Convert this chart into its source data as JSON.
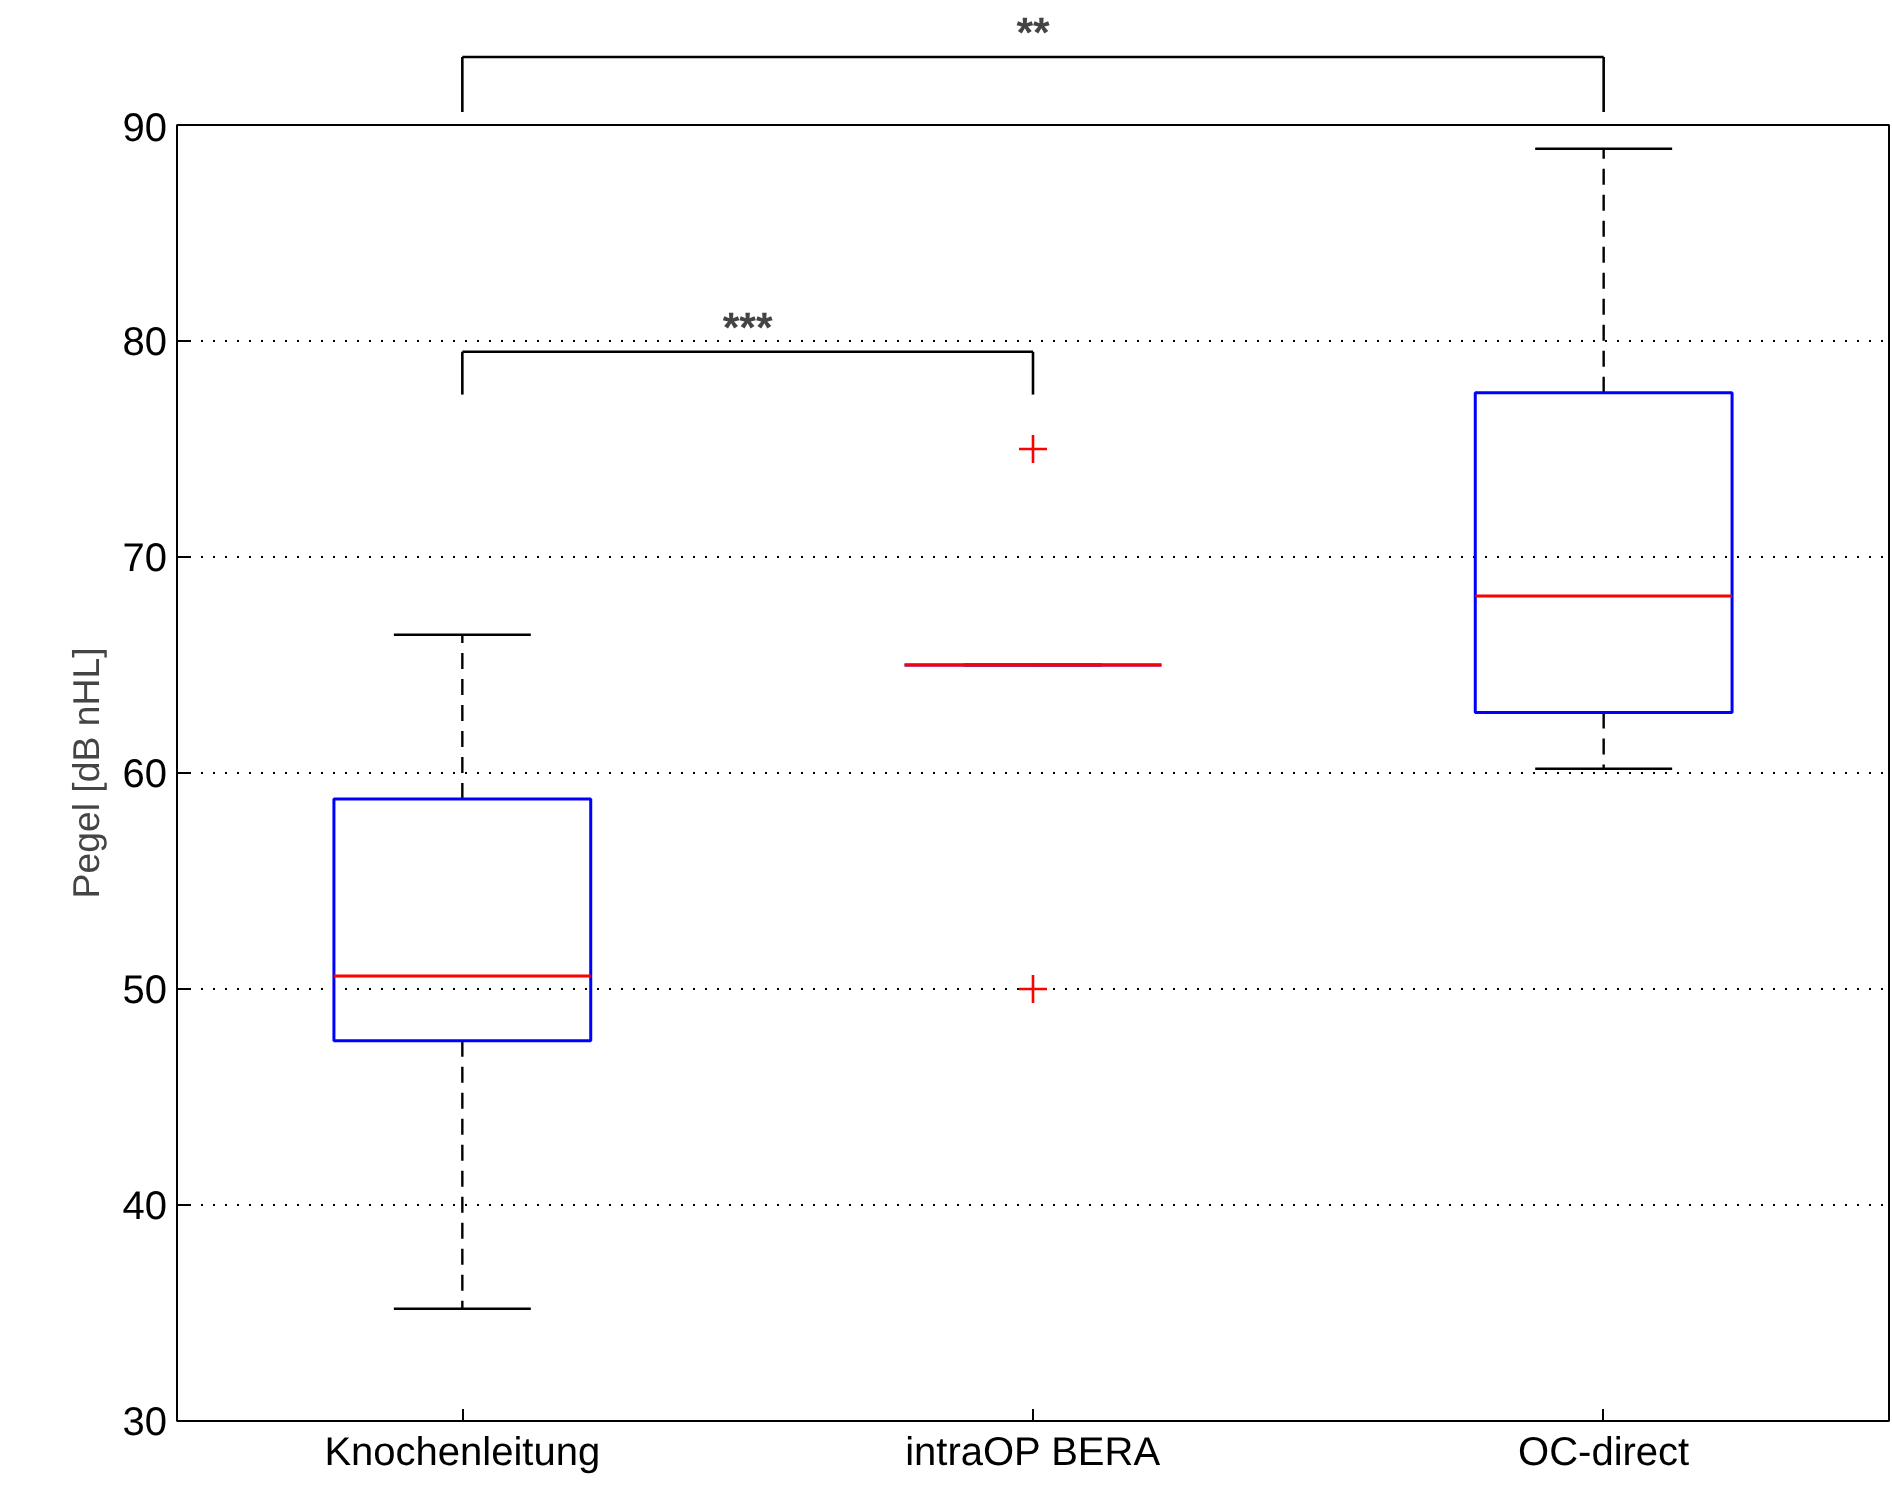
{
  "chart_data": {
    "type": "box",
    "ylabel": "Pegel [dB nHL]",
    "categories": [
      "Knochenleitung",
      "intraOP BERA",
      "OC-direct"
    ],
    "boxes": [
      {
        "low": 35.2,
        "q1": 47.6,
        "median": 50.6,
        "q3": 58.8,
        "high": 66.4
      },
      {
        "low": 65,
        "q1": 65,
        "median": 65,
        "q3": 65,
        "high": 65,
        "outliers": [
          75,
          50
        ]
      },
      {
        "low": 60.2,
        "q1": 62.8,
        "median": 68.2,
        "q3": 77.6,
        "high": 88.9
      }
    ],
    "ylim": [
      30,
      90
    ],
    "yticks": [
      30,
      40,
      50,
      60,
      70,
      80,
      90
    ],
    "grid": "y",
    "annotations": [
      "***",
      "**"
    ]
  }
}
